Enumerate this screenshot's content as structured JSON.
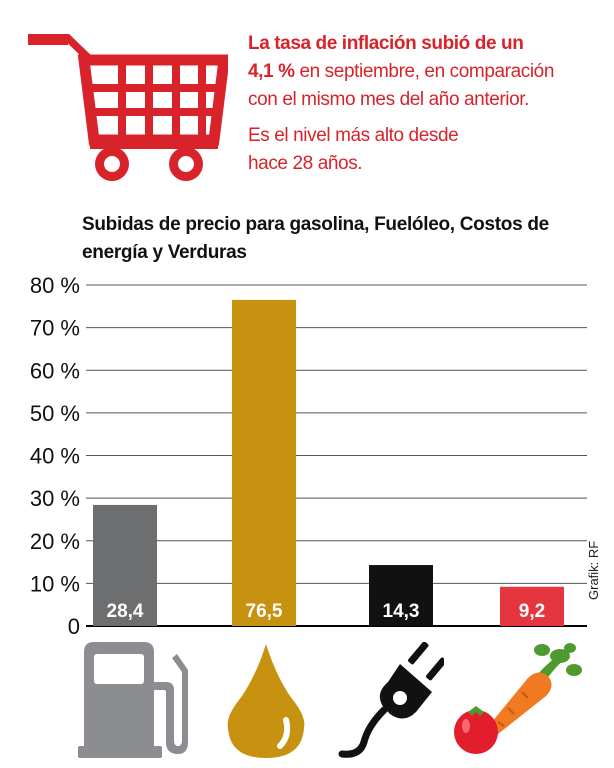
{
  "headline": {
    "line1_bold": "La tasa de inflación subió de un",
    "line2_bold": "4,1 %",
    "line2_rest": " en septiembre, en comparación",
    "line3": "con el mismo mes del año anterior.",
    "line4": "Es el nivel más alto desde",
    "line5": "hace 28 años."
  },
  "credit": "Grafik: RF",
  "colors": {
    "accent": "#d8232a",
    "gasolina": "#6d6e70",
    "fueloleo": "#c89211",
    "energia": "#111111",
    "verduras": "#e5363f"
  },
  "icons": [
    "fuel-pump-icon",
    "oil-drop-icon",
    "power-plug-icon",
    "vegetables-icon"
  ],
  "chart_data": {
    "type": "bar",
    "title": "Subidas de precio para gasolina, Fuelóleo, Costos de energía y Verduras",
    "categories": [
      "gasolina",
      "Fuelóleo",
      "Costos de energía",
      "Verduras"
    ],
    "values": [
      28.4,
      76.5,
      14.3,
      9.2
    ],
    "value_labels": [
      "28,4",
      "76,5",
      "14,3",
      "9,2"
    ],
    "bar_colors": [
      "#6d6e70",
      "#c89211",
      "#111111",
      "#e5363f"
    ],
    "ylim": [
      0,
      80
    ],
    "yticks": [
      0,
      10,
      20,
      30,
      40,
      50,
      60,
      70,
      80
    ],
    "ytick_labels": [
      "0",
      "10 %",
      "20 %",
      "30 %",
      "40 %",
      "50 %",
      "60 %",
      "70 %",
      "80 %"
    ],
    "grid": true,
    "legend": "none"
  }
}
